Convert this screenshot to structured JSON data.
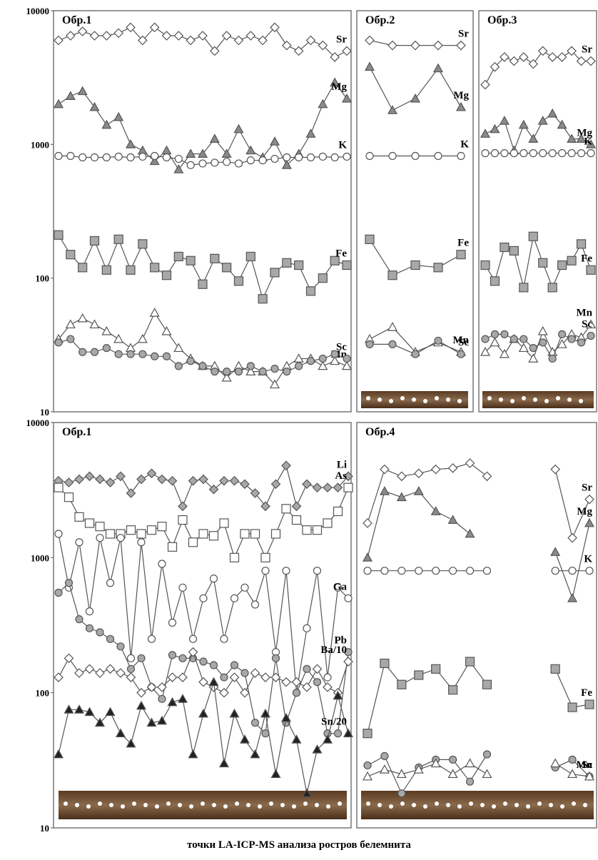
{
  "caption": "точки LA-ICP-MS анализа ростров белемнита",
  "chart_data": [
    {
      "type": "line",
      "title": "Обр.1",
      "log_scale": true,
      "ylim": [
        10,
        10000
      ],
      "yticks": [
        10,
        100,
        1000,
        10000
      ],
      "series": [
        {
          "name": "Sr",
          "marker": "diamond",
          "color": "#ffffff",
          "values": [
            6000,
            6500,
            7000,
            6500,
            6500,
            6800,
            7500,
            6000,
            7500,
            6500,
            6500,
            6000,
            6500,
            5000,
            6500,
            6000,
            6500,
            6000,
            7500,
            5500,
            5000,
            6000,
            5500,
            4500,
            5000
          ]
        },
        {
          "name": "Mg",
          "marker": "triangle",
          "color": "#8a8a8a",
          "values": [
            2000,
            2300,
            2500,
            1900,
            1400,
            1600,
            1000,
            900,
            750,
            900,
            650,
            850,
            850,
            1100,
            850,
            1300,
            900,
            800,
            1050,
            700,
            850,
            1200,
            2000,
            2900,
            2200
          ]
        },
        {
          "name": "K",
          "marker": "circle",
          "color": "#ffffff",
          "values": [
            820,
            820,
            800,
            800,
            800,
            810,
            800,
            810,
            820,
            800,
            780,
            700,
            720,
            730,
            740,
            720,
            760,
            760,
            780,
            800,
            800,
            800,
            810,
            800,
            810
          ]
        },
        {
          "name": "Fe",
          "marker": "square",
          "color": "#a8a8a8",
          "values": [
            210,
            150,
            120,
            190,
            115,
            195,
            115,
            180,
            120,
            105,
            145,
            135,
            90,
            140,
            120,
            95,
            145,
            70,
            110,
            130,
            125,
            80,
            100,
            135,
            125
          ]
        },
        {
          "name": "Mn",
          "marker": "triangle",
          "color": "#ffffff",
          "values": [
            35,
            45,
            50,
            45,
            40,
            35,
            30,
            35,
            55,
            40,
            30,
            25,
            22,
            22,
            18,
            22,
            20,
            20,
            16,
            22,
            25,
            25,
            22,
            24,
            22
          ]
        },
        {
          "name": "Sc",
          "marker": "circle",
          "color": "#a8a8a8",
          "values": [
            33,
            35,
            28,
            28,
            30,
            27,
            27,
            27,
            26,
            26,
            22,
            24,
            22,
            20,
            20,
            20,
            22,
            20,
            21,
            20,
            22,
            24,
            25,
            27,
            25
          ]
        }
      ]
    },
    {
      "type": "line",
      "title": "Обр.2",
      "log_scale": true,
      "ylim": [
        10,
        10000
      ],
      "series": [
        {
          "name": "Sr",
          "marker": "diamond",
          "color": "#ffffff",
          "values": [
            6000,
            5500,
            5500,
            5500,
            5500
          ]
        },
        {
          "name": "Mg",
          "marker": "triangle",
          "color": "#8a8a8a",
          "values": [
            3800,
            1800,
            2200,
            3700,
            1900
          ]
        },
        {
          "name": "K",
          "marker": "circle",
          "color": "#ffffff",
          "values": [
            820,
            820,
            820,
            820,
            820
          ]
        },
        {
          "name": "Fe",
          "marker": "square",
          "color": "#a8a8a8",
          "values": [
            195,
            105,
            125,
            120,
            150
          ]
        },
        {
          "name": "Mn",
          "marker": "triangle",
          "color": "#ffffff",
          "values": [
            35,
            43,
            28,
            33,
            28
          ]
        },
        {
          "name": "Sc",
          "marker": "circle",
          "color": "#a8a8a8",
          "values": [
            32,
            32,
            27,
            34,
            27
          ]
        }
      ]
    },
    {
      "type": "line",
      "title": "Обр.3",
      "log_scale": true,
      "ylim": [
        10,
        10000
      ],
      "series": [
        {
          "name": "Sr",
          "marker": "diamond",
          "color": "#ffffff",
          "values": [
            2800,
            3800,
            4500,
            4200,
            4500,
            4000,
            5000,
            4500,
            4500,
            5000,
            4200,
            4200
          ]
        },
        {
          "name": "Mg",
          "marker": "triangle",
          "color": "#8a8a8a",
          "values": [
            1200,
            1300,
            1500,
            900,
            1400,
            1100,
            1500,
            1700,
            1400,
            1100,
            1100,
            1000
          ]
        },
        {
          "name": "K",
          "marker": "circle",
          "color": "#ffffff",
          "values": [
            860,
            860,
            860,
            860,
            860,
            860,
            860,
            860,
            860,
            860,
            860,
            860
          ]
        },
        {
          "name": "Fe",
          "marker": "square",
          "color": "#a8a8a8",
          "values": [
            125,
            95,
            170,
            160,
            85,
            205,
            130,
            85,
            125,
            135,
            180,
            115
          ]
        },
        {
          "name": "Mn",
          "marker": "triangle",
          "color": "#ffffff",
          "values": [
            28,
            33,
            27,
            35,
            30,
            25,
            40,
            28,
            32,
            38,
            36,
            45
          ]
        },
        {
          "name": "Sc",
          "marker": "circle",
          "color": "#a8a8a8",
          "values": [
            35,
            38,
            38,
            35,
            35,
            30,
            33,
            25,
            38,
            35,
            33,
            37
          ]
        }
      ]
    },
    {
      "type": "line",
      "title": "Обр.1",
      "log_scale": true,
      "ylim": [
        10,
        10000
      ],
      "yticks": [
        10,
        100,
        1000,
        10000
      ],
      "series": [
        {
          "name": "Li",
          "marker": "diamond",
          "color": "#a8a8a8",
          "values": [
            3700,
            3600,
            3800,
            4000,
            3800,
            3600,
            4000,
            3000,
            3800,
            4200,
            3800,
            3700,
            2400,
            3700,
            3800,
            3200,
            3700,
            3700,
            3500,
            3000,
            2400,
            3500,
            4800,
            2400,
            3500,
            3300,
            3300,
            3300,
            4000
          ]
        },
        {
          "name": "As",
          "marker": "square",
          "color": "#ffffff",
          "values": [
            3300,
            2800,
            2000,
            1800,
            1700,
            1500,
            1500,
            1600,
            1500,
            1600,
            1700,
            1200,
            1900,
            1300,
            1500,
            1450,
            1800,
            1000,
            1500,
            1500,
            1000,
            1500,
            2300,
            1900,
            1600,
            1600,
            1800,
            2200,
            3300
          ]
        },
        {
          "name": "Ga",
          "marker": "circle",
          "color": "#ffffff",
          "values": [
            1500,
            600,
            1300,
            400,
            1400,
            650,
            1400,
            180,
            1300,
            250,
            900,
            330,
            600,
            250,
            500,
            700,
            250,
            500,
            600,
            450,
            800,
            200,
            800,
            100,
            300,
            800,
            130,
            600,
            500
          ]
        },
        {
          "name": "Pb",
          "marker": "circle",
          "color": "#a8a8a8",
          "values": [
            550,
            650,
            350,
            300,
            280,
            250,
            220,
            150,
            180,
            110,
            90,
            190,
            180,
            180,
            170,
            160,
            130,
            160,
            140,
            60,
            50,
            180,
            60,
            100,
            150,
            120,
            50,
            50,
            200
          ]
        },
        {
          "name": "Ba/10",
          "marker": "diamond",
          "color": "#ffffff",
          "values": [
            130,
            180,
            140,
            150,
            140,
            150,
            140,
            130,
            100,
            110,
            110,
            130,
            130,
            200,
            120,
            110,
            100,
            130,
            100,
            140,
            130,
            130,
            120,
            120,
            110,
            150,
            110,
            100,
            170
          ]
        },
        {
          "name": "Sn/20",
          "marker": "triangle",
          "color": "#222222",
          "values": [
            35,
            75,
            75,
            72,
            60,
            72,
            50,
            42,
            80,
            60,
            62,
            85,
            90,
            35,
            70,
            120,
            30,
            70,
            45,
            35,
            70,
            25,
            65,
            45,
            18,
            38,
            45,
            95,
            50
          ]
        }
      ]
    },
    {
      "type": "line",
      "title": "Обр.4",
      "log_scale": true,
      "ylim": [
        10,
        10000
      ],
      "series": [
        {
          "name": "Sr",
          "marker": "diamond",
          "color": "#ffffff",
          "values": [
            1800,
            4500,
            4000,
            4200,
            4500,
            4600,
            5000,
            4000,
            null,
            null,
            null,
            4500,
            1400,
            2700
          ]
        },
        {
          "name": "Mg",
          "marker": "triangle",
          "color": "#8a8a8a",
          "values": [
            1000,
            3100,
            2800,
            3100,
            2200,
            1900,
            1500,
            null,
            null,
            null,
            null,
            1100,
            500,
            1800
          ]
        },
        {
          "name": "K",
          "marker": "circle",
          "color": "#ffffff",
          "values": [
            800,
            800,
            800,
            800,
            800,
            800,
            800,
            800,
            null,
            null,
            null,
            800,
            800,
            800
          ]
        },
        {
          "name": "Fe",
          "marker": "square",
          "color": "#a8a8a8",
          "values": [
            50,
            165,
            115,
            135,
            150,
            105,
            170,
            115,
            null,
            null,
            null,
            150,
            78,
            82
          ]
        },
        {
          "name": "Sc",
          "marker": "circle",
          "color": "#a8a8a8",
          "values": [
            29,
            34,
            18,
            28,
            32,
            32,
            22,
            35,
            null,
            null,
            null,
            28,
            32,
            24
          ]
        },
        {
          "name": "Mn",
          "marker": "triangle",
          "color": "#ffffff",
          "values": [
            24,
            27,
            25,
            27,
            30,
            25,
            30,
            25,
            null,
            null,
            null,
            30,
            25,
            24
          ]
        }
      ]
    }
  ]
}
